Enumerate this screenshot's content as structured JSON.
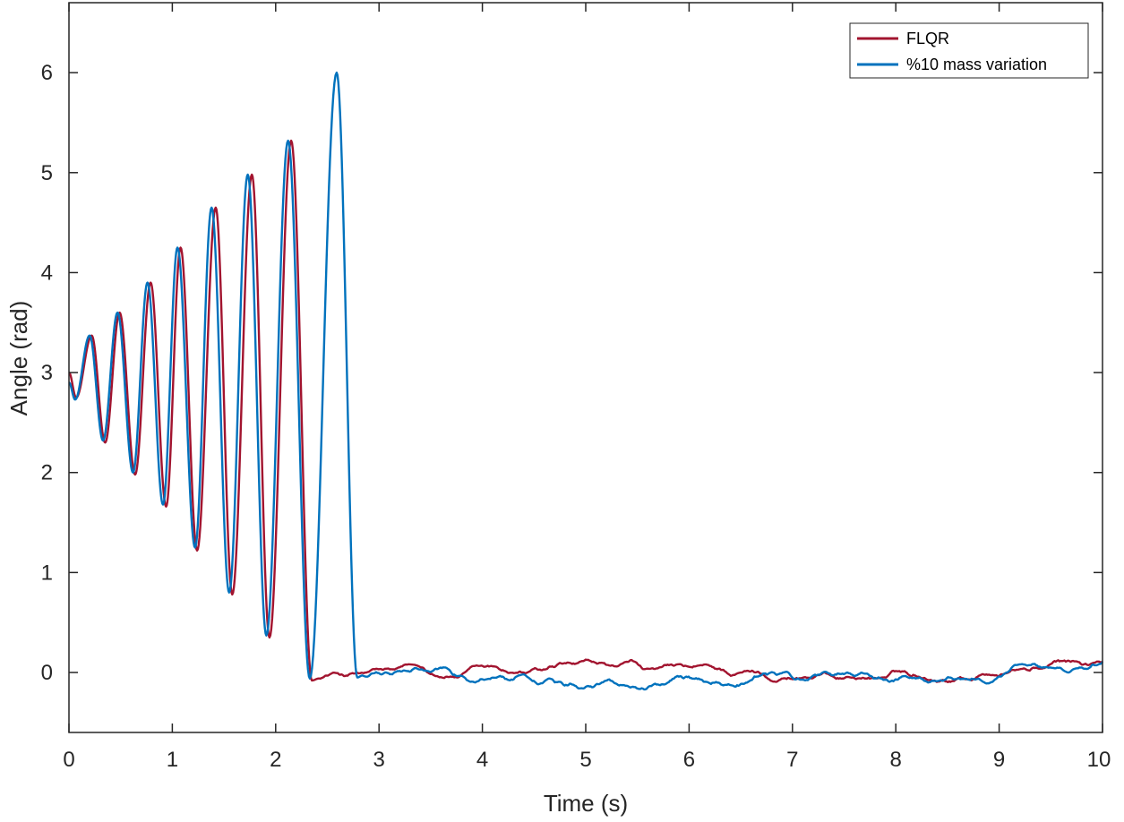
{
  "chart_data": {
    "type": "line",
    "title": "",
    "xlabel": "Time (s)",
    "ylabel": "Angle (rad)",
    "xlim": [
      0,
      10
    ],
    "ylim": [
      -0.6,
      6.7
    ],
    "xticks": [
      0,
      1,
      2,
      3,
      4,
      5,
      6,
      7,
      8,
      9,
      10
    ],
    "yticks": [
      0,
      1,
      2,
      3,
      4,
      5,
      6
    ],
    "grid": false,
    "legend_position": "top-right",
    "series": [
      {
        "name": "FLQR",
        "color": "#a2142f",
        "peaks": [
          {
            "t": 0.0,
            "v": 3.0
          },
          {
            "t": 0.07,
            "v": 2.75
          },
          {
            "t": 0.22,
            "v": 3.37
          },
          {
            "t": 0.35,
            "v": 2.3
          },
          {
            "t": 0.49,
            "v": 3.6
          },
          {
            "t": 0.64,
            "v": 1.98
          },
          {
            "t": 0.79,
            "v": 3.9
          },
          {
            "t": 0.94,
            "v": 1.66
          },
          {
            "t": 1.08,
            "v": 4.25
          },
          {
            "t": 1.24,
            "v": 1.22
          },
          {
            "t": 1.42,
            "v": 4.65
          },
          {
            "t": 1.58,
            "v": 0.78
          },
          {
            "t": 1.77,
            "v": 4.98
          },
          {
            "t": 1.94,
            "v": 0.35
          },
          {
            "t": 2.15,
            "v": 5.32
          },
          {
            "t": 2.35,
            "v": -0.08
          },
          {
            "t": 2.42,
            "v": -0.06
          }
        ],
        "noise_mean": -0.02,
        "noise_amplitude": 0.05,
        "noise_end_value": 0.1
      },
      {
        "name": "%10 mass variation",
        "color": "#0072bd",
        "peaks": [
          {
            "t": 0.0,
            "v": 2.9
          },
          {
            "t": 0.06,
            "v": 2.73
          },
          {
            "t": 0.2,
            "v": 3.37
          },
          {
            "t": 0.33,
            "v": 2.32
          },
          {
            "t": 0.47,
            "v": 3.6
          },
          {
            "t": 0.62,
            "v": 2.0
          },
          {
            "t": 0.76,
            "v": 3.9
          },
          {
            "t": 0.91,
            "v": 1.68
          },
          {
            "t": 1.05,
            "v": 4.25
          },
          {
            "t": 1.22,
            "v": 1.25
          },
          {
            "t": 1.38,
            "v": 4.65
          },
          {
            "t": 1.55,
            "v": 0.8
          },
          {
            "t": 1.73,
            "v": 4.98
          },
          {
            "t": 1.91,
            "v": 0.37
          },
          {
            "t": 2.12,
            "v": 5.32
          },
          {
            "t": 2.33,
            "v": -0.06
          },
          {
            "t": 2.59,
            "v": 6.0
          },
          {
            "t": 2.79,
            "v": -0.05
          },
          {
            "t": 2.84,
            "v": -0.03
          }
        ],
        "noise_mean": -0.04,
        "noise_amplitude": 0.06,
        "noise_end_value": 0.02
      }
    ]
  }
}
